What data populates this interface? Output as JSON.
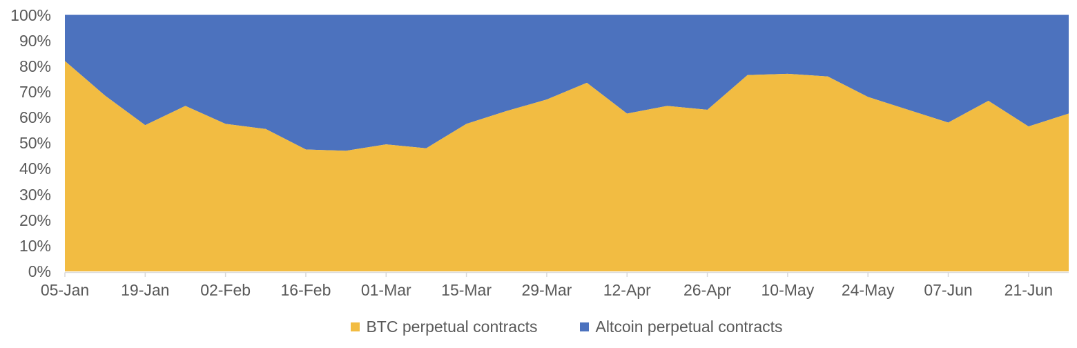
{
  "chart_data": {
    "type": "area",
    "stacked": true,
    "percent_stacked": true,
    "x": [
      "05-Jan",
      "12-Jan",
      "19-Jan",
      "26-Jan",
      "02-Feb",
      "09-Feb",
      "16-Feb",
      "23-Feb",
      "01-Mar",
      "08-Mar",
      "15-Mar",
      "22-Mar",
      "29-Mar",
      "05-Apr",
      "12-Apr",
      "19-Apr",
      "26-Apr",
      "03-May",
      "10-May",
      "17-May",
      "24-May",
      "31-May",
      "07-Jun",
      "14-Jun",
      "21-Jun",
      "28-Jun"
    ],
    "series": [
      {
        "name": "BTC perpetual contracts",
        "color": "#F2BC42",
        "values": [
          82,
          68.5,
          57,
          64.5,
          57.5,
          55.5,
          47.5,
          47,
          49.5,
          48,
          57.5,
          62.5,
          67,
          73.5,
          61.5,
          64.5,
          63,
          76.5,
          77,
          76,
          68,
          63,
          58,
          66.5,
          56.5,
          61.5
        ]
      },
      {
        "name": "Altcoin perpetual contracts",
        "color": "#4C72BE",
        "values": [
          18,
          31.5,
          43,
          35.5,
          42.5,
          44.5,
          52.5,
          53,
          50.5,
          52,
          42.5,
          37.5,
          33,
          26.5,
          38.5,
          35.5,
          37,
          23.5,
          23,
          24,
          32,
          37,
          42,
          33.5,
          43.5,
          38.5
        ]
      }
    ],
    "x_tick_labels": [
      "05-Jan",
      "19-Jan",
      "02-Feb",
      "16-Feb",
      "01-Mar",
      "15-Mar",
      "29-Mar",
      "12-Apr",
      "26-Apr",
      "10-May",
      "24-May",
      "07-Jun",
      "21-Jun"
    ],
    "y_tick_labels": [
      "0%",
      "10%",
      "20%",
      "30%",
      "40%",
      "50%",
      "60%",
      "70%",
      "80%",
      "90%",
      "100%"
    ],
    "ylim": [
      0,
      100
    ],
    "grid": false,
    "legend_position": "bottom"
  },
  "legend": {
    "items": [
      {
        "label": "BTC perpetual contracts",
        "color": "#F2BC42"
      },
      {
        "label": "Altcoin perpetual contracts",
        "color": "#4C72BE"
      }
    ]
  },
  "colors": {
    "background": "#FFFFFF",
    "axis_text": "#595959",
    "axis_line": "#D9D9D9"
  }
}
